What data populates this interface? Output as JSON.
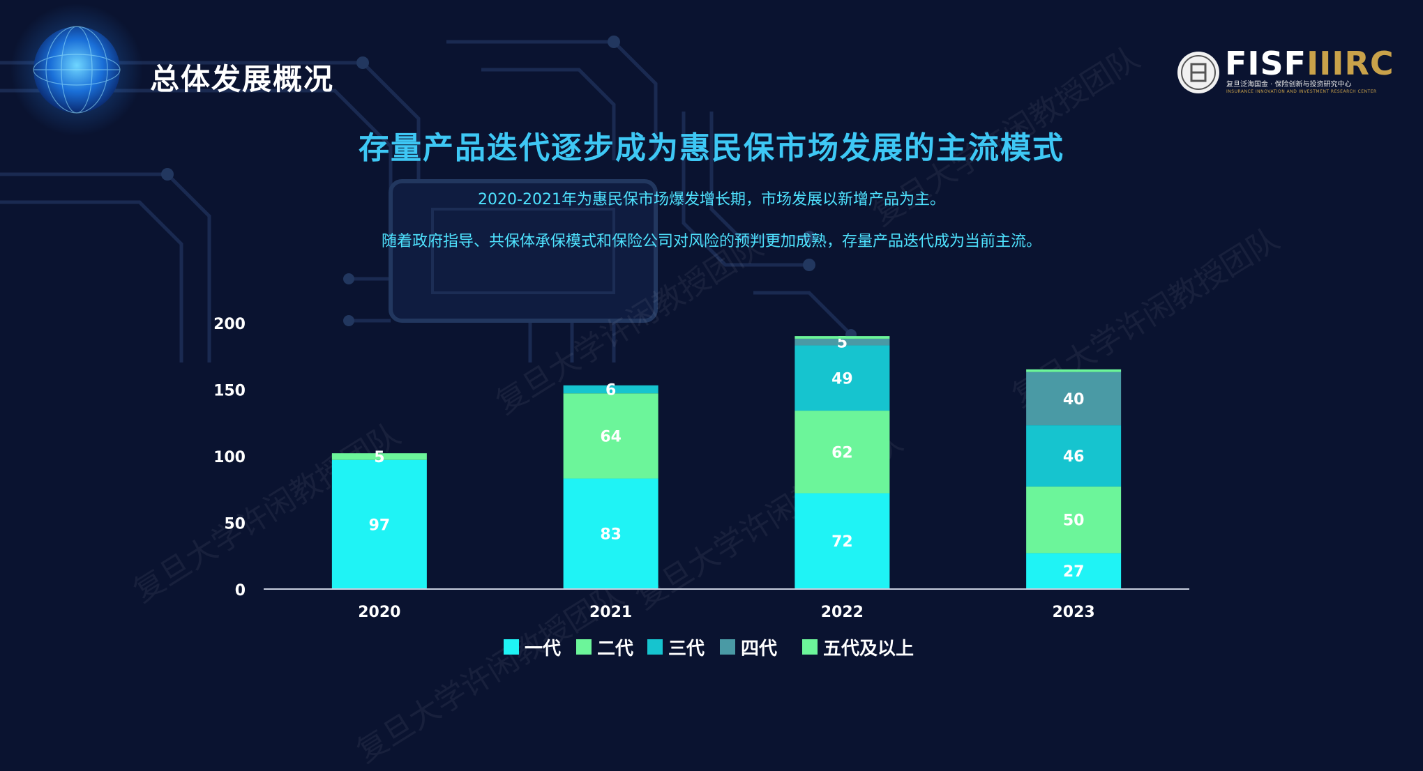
{
  "header": {
    "section_title": "总体发展概况",
    "main_title": "存量产品迭代逐步成为惠民保市场发展的主流模式",
    "subtitle_lines": [
      "2020-2021年为惠民保市场爆发增长期，市场发展以新增产品为主。",
      "随着政府指导、共保体承保模式和保险公司对风险的预判更加成熟，存量产品迭代成为当前主流。"
    ]
  },
  "logo": {
    "brand_main": "FISF",
    "brand_accent": "IIIRC",
    "line1": "复旦泛海国金 · 保险创新与投资研究中心",
    "line2": "INSURANCE INNOVATION AND INVESTMENT RESEARCH CENTER"
  },
  "watermark": "复旦大学许闲教授团队",
  "colors": {
    "background": "#0a1330",
    "title_accent": "#3ec8f5",
    "subtitle_text": "#4fe3ff"
  },
  "chart_data": {
    "type": "bar",
    "stacked": true,
    "categories": [
      "2020",
      "2021",
      "2022",
      "2023"
    ],
    "ylim": [
      0,
      200
    ],
    "yticks": [
      0,
      50,
      100,
      150,
      200
    ],
    "grid": false,
    "legend_position": "bottom",
    "series": [
      {
        "name": "一代",
        "color": "#1ff3f5",
        "values": [
          97,
          83,
          72,
          27
        ],
        "labels": [
          "97",
          "83",
          "72",
          "27"
        ]
      },
      {
        "name": "二代",
        "color": "#6cf59a",
        "values": [
          5,
          64,
          62,
          50
        ],
        "labels": [
          "5",
          "64",
          "62",
          "50"
        ]
      },
      {
        "name": "三代",
        "color": "#16c4cf",
        "values": [
          0,
          6,
          49,
          46
        ],
        "labels": [
          "",
          "6",
          "49",
          "46"
        ]
      },
      {
        "name": "四代",
        "color": "#4a9aa5",
        "values": [
          0,
          0,
          5,
          40
        ],
        "labels": [
          "",
          "",
          "5",
          "40"
        ]
      },
      {
        "name": "五代及以上",
        "color": "#6cf59a",
        "values": [
          0,
          0,
          2,
          2
        ],
        "labels": [
          "",
          "",
          "",
          ""
        ]
      }
    ]
  }
}
